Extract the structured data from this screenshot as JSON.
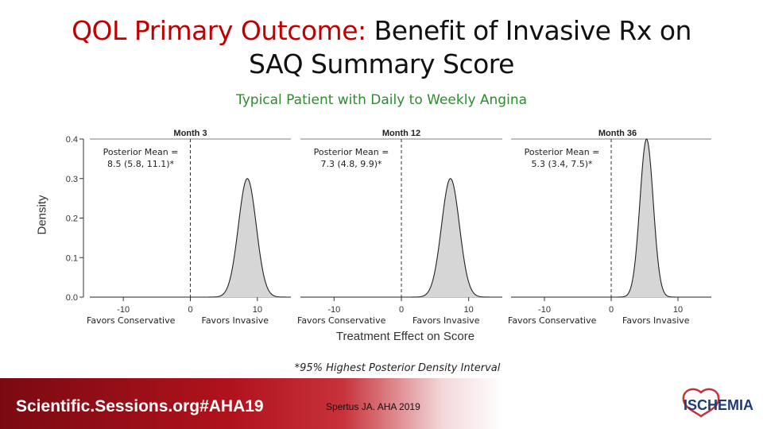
{
  "slide": {
    "title_red": "QOL Primary Outcome:",
    "title_black_1": " Benefit of Invasive Rx on",
    "title_line2": "SAQ Summary Score",
    "subtitle": "Typical Patient with Daily to Weekly Angina",
    "footnote": "*95% Highest Posterior Density Interval",
    "footer_left": "Scientific.Sessions.org#AHA19",
    "footer_center": "Spertus JA. AHA 2019",
    "logo_text": "ISCHEMIA"
  },
  "chart_data": {
    "type": "area",
    "xlabel": "Treatment Effect on Score",
    "ylabel": "Density",
    "xlim": [
      -15,
      15
    ],
    "ylim": [
      0,
      0.4
    ],
    "y_ticks": [
      0.0,
      0.1,
      0.2,
      0.3,
      0.4
    ],
    "x_ticks": [
      -10,
      0,
      10
    ],
    "reference_line_x": 0,
    "favors_left": "Favors Conservative",
    "favors_right": "Favors Invasive",
    "panels": [
      {
        "title": "Month 3",
        "posterior_label": "Posterior Mean =",
        "posterior_value": "8.5 (5.8, 11.1)*",
        "mean": 8.5,
        "peak_density": 0.3
      },
      {
        "title": "Month 12",
        "posterior_label": "Posterior Mean =",
        "posterior_value": "7.3 (4.8, 9.9)*",
        "mean": 7.3,
        "peak_density": 0.3
      },
      {
        "title": "Month 36",
        "posterior_label": "Posterior Mean =",
        "posterior_value": "5.3 (3.4, 7.5)*",
        "mean": 5.3,
        "peak_density": 0.4
      }
    ]
  }
}
